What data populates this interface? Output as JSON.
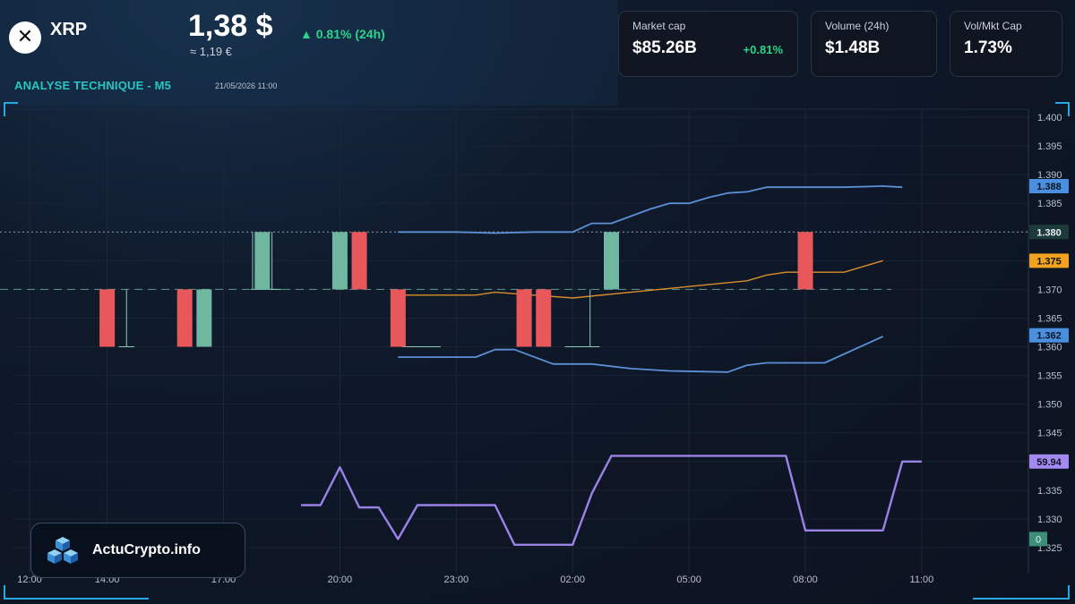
{
  "header": {
    "coin": "XRP",
    "price": "1,38 $",
    "price_eur": "≈ 1,19 €",
    "change": "▲ 0.81% (24h)",
    "analysis_title": "ANALYSE TECHNIQUE - M5",
    "datetime": "21/05/2026 11:00"
  },
  "cards": [
    {
      "label": "Market cap",
      "value": "$85.26B",
      "change": "+0.81%"
    },
    {
      "label": "Volume (24h)",
      "value": "$1.48B"
    },
    {
      "label": "Vol/Mkt Cap",
      "value": "1.73%"
    }
  ],
  "brand": {
    "name": "ActuCrypto.info"
  },
  "colors": {
    "up": "#6fb7a0",
    "down": "#e8575a",
    "bollinger": "#5b8fd6",
    "ma": "#d98e2a",
    "rsi": "#9b82e8",
    "accent": "#2aa7e0"
  },
  "chart_data": {
    "type": "candlestick",
    "x_ticks": [
      "12:00",
      "14:00",
      "17:00",
      "20:00",
      "23:00",
      "02:00",
      "05:00",
      "08:00",
      "11:00"
    ],
    "y_ticks": [
      "1.400",
      "1.395",
      "1.390",
      "1.385",
      "1.380",
      "1.375",
      "1.370",
      "1.365",
      "1.360",
      "1.355",
      "1.350",
      "1.345",
      "1.340",
      "1.335",
      "1.330",
      "1.325"
    ],
    "ylim": [
      1.3235,
      1.402
    ],
    "candles": [
      {
        "x": "14:00",
        "open": 1.37,
        "close": 1.36,
        "high": 1.37,
        "low": 1.36
      },
      {
        "x": "16:00",
        "open": 1.37,
        "close": 1.36,
        "high": 1.37,
        "low": 1.36
      },
      {
        "x": "16:30",
        "open": 1.36,
        "close": 1.37,
        "high": 1.37,
        "low": 1.36
      },
      {
        "x": "18:00",
        "open": 1.37,
        "close": 1.38,
        "high": 1.38,
        "low": 1.37
      },
      {
        "x": "20:00",
        "open": 1.37,
        "close": 1.38,
        "high": 1.38,
        "low": 1.37
      },
      {
        "x": "20:30",
        "open": 1.38,
        "close": 1.37,
        "high": 1.38,
        "low": 1.37
      },
      {
        "x": "21:30",
        "open": 1.37,
        "close": 1.36,
        "high": 1.37,
        "low": 1.36
      },
      {
        "x": "00:45",
        "open": 1.37,
        "close": 1.36,
        "high": 1.37,
        "low": 1.36
      },
      {
        "x": "01:15",
        "open": 1.37,
        "close": 1.36,
        "high": 1.37,
        "low": 1.36
      },
      {
        "x": "03:00",
        "open": 1.37,
        "close": 1.38,
        "high": 1.38,
        "low": 1.37
      },
      {
        "x": "08:00",
        "open": 1.38,
        "close": 1.37,
        "high": 1.38,
        "low": 1.37
      }
    ],
    "bollinger_upper": [
      [
        21.5,
        1.38
      ],
      [
        23.0,
        1.38
      ],
      [
        24.0,
        1.3798
      ],
      [
        25.0,
        1.38
      ],
      [
        26.0,
        1.38
      ],
      [
        26.5,
        1.3815
      ],
      [
        27.0,
        1.3815
      ],
      [
        28.0,
        1.384
      ],
      [
        28.5,
        1.385
      ],
      [
        29.0,
        1.385
      ],
      [
        29.5,
        1.386
      ],
      [
        30.0,
        1.3868
      ],
      [
        30.5,
        1.387
      ],
      [
        31.0,
        1.3878
      ],
      [
        32.0,
        1.3878
      ],
      [
        33.0,
        1.3878
      ],
      [
        34.0,
        1.388
      ],
      [
        34.5,
        1.3878
      ]
    ],
    "bollinger_lower": [
      [
        21.5,
        1.3582
      ],
      [
        22.0,
        1.3582
      ],
      [
        23.5,
        1.3582
      ],
      [
        24.0,
        1.3595
      ],
      [
        24.5,
        1.3595
      ],
      [
        25.5,
        1.357
      ],
      [
        26.5,
        1.357
      ],
      [
        27.5,
        1.3562
      ],
      [
        28.5,
        1.3558
      ],
      [
        30.0,
        1.3556
      ],
      [
        30.5,
        1.3568
      ],
      [
        31.0,
        1.3572
      ],
      [
        32.0,
        1.3572
      ],
      [
        32.5,
        1.3572
      ],
      [
        34.0,
        1.3618
      ]
    ],
    "moving_average": [
      [
        21.5,
        1.369
      ],
      [
        23.5,
        1.369
      ],
      [
        24.0,
        1.3695
      ],
      [
        25.0,
        1.369
      ],
      [
        26.0,
        1.3685
      ],
      [
        27.5,
        1.3695
      ],
      [
        29.0,
        1.3705
      ],
      [
        30.5,
        1.3715
      ],
      [
        31.0,
        1.3725
      ],
      [
        31.5,
        1.373
      ],
      [
        32.0,
        1.373
      ],
      [
        33.0,
        1.373
      ],
      [
        34.0,
        1.375
      ]
    ],
    "bollinger_upper_last": "1.388",
    "moving_average_last": "1.375",
    "bollinger_lower_last": "1.362",
    "last_price": "1.380",
    "rsi": [
      [
        19.0,
        1.3324
      ],
      [
        19.5,
        1.3324
      ],
      [
        20.0,
        1.339
      ],
      [
        20.5,
        1.332
      ],
      [
        21.0,
        1.332
      ],
      [
        21.5,
        1.3265
      ],
      [
        22.0,
        1.3324
      ],
      [
        23.5,
        1.3324
      ],
      [
        24.0,
        1.3324
      ],
      [
        24.5,
        1.3255
      ],
      [
        26.0,
        1.3255
      ],
      [
        26.5,
        1.3345
      ],
      [
        27.0,
        1.341
      ],
      [
        29.0,
        1.341
      ],
      [
        31.0,
        1.341
      ],
      [
        31.5,
        1.341
      ],
      [
        32.0,
        1.328
      ],
      [
        34.0,
        1.328
      ],
      [
        34.5,
        1.34
      ],
      [
        35.0,
        1.34
      ]
    ],
    "rsi_last": "59.94",
    "rsi_baseline": "0"
  }
}
